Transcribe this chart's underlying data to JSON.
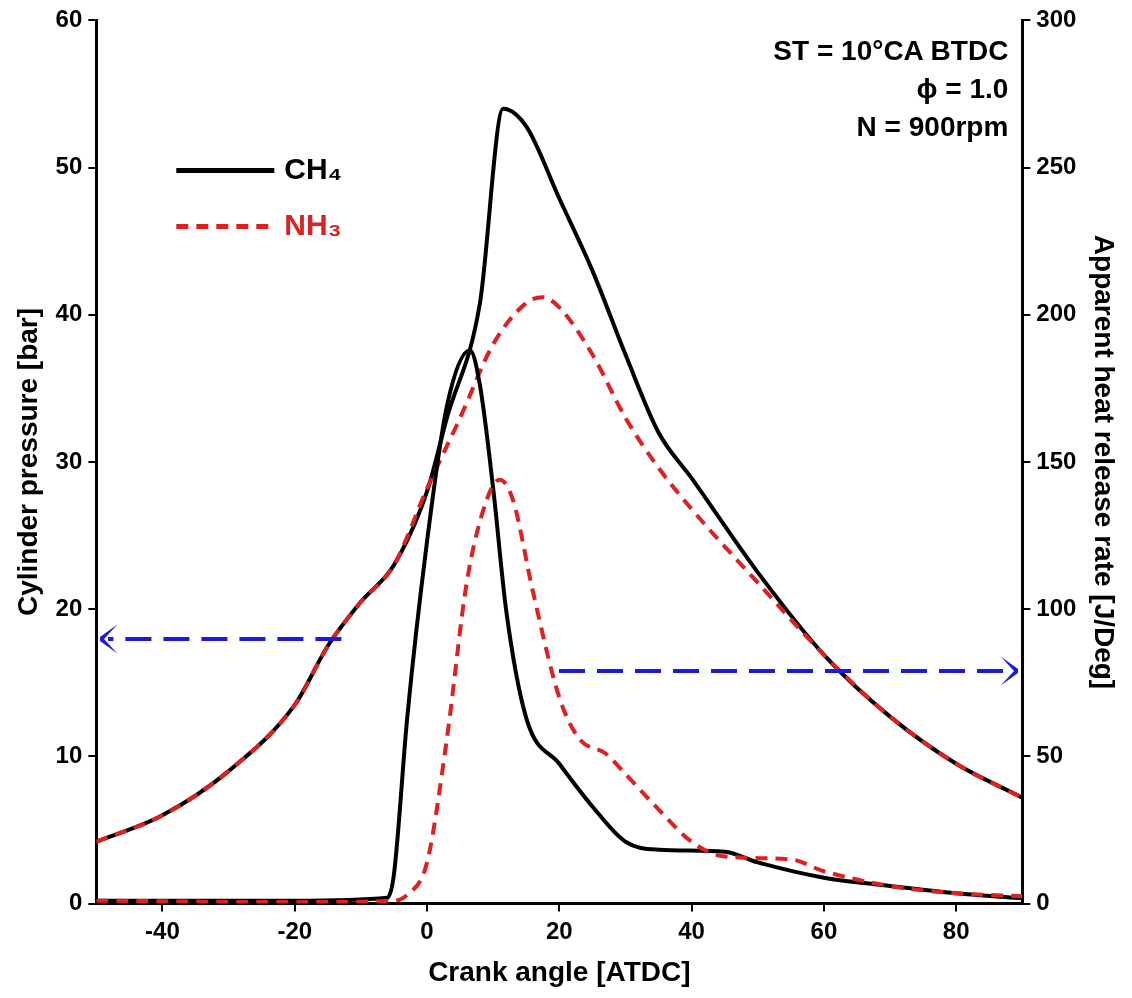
{
  "chart_data": {
    "type": "line",
    "xlabel": "Crank angle [ATDC]",
    "ylabel": "Cylinder pressure [bar]",
    "y2label": "Apparent heat release rate [J/Deg]",
    "xlim": [
      -50,
      90
    ],
    "xticks": [
      -40,
      -20,
      0,
      20,
      40,
      60,
      80
    ],
    "ylim": [
      0,
      60
    ],
    "yticks": [
      0,
      10,
      20,
      30,
      40,
      50,
      60
    ],
    "y2lim": [
      0,
      300
    ],
    "y2ticks": [
      0,
      50,
      100,
      150,
      200,
      250,
      300
    ],
    "grid": false,
    "legend": "top left",
    "marker": "none",
    "annotations": [
      "ST = 10°CA BTDC",
      "ϕ = 1.0",
      "N = 900rpm"
    ],
    "series": [
      {
        "name": "CH₄",
        "color": "#000000",
        "line_style": "solid",
        "x": [
          -50,
          -40,
          -30,
          -20,
          -15,
          -10,
          -5,
          0,
          3,
          8,
          11.5,
          15,
          20,
          25,
          30,
          35,
          40,
          50,
          60,
          70,
          80,
          90
        ],
        "values": [
          4.2,
          6,
          9,
          13.5,
          17.5,
          20.5,
          23,
          28,
          33,
          40.8,
          54,
          52.8,
          47.9,
          43,
          37.3,
          32,
          28.9,
          22.5,
          16.9,
          12.7,
          9.5,
          7.2
        ]
      },
      {
        "name": "NH₃",
        "color": "#e02020",
        "line_style": "dashed",
        "x": [
          -50,
          -40,
          -30,
          -20,
          -15,
          -10,
          -5,
          0,
          5,
          10,
          15,
          17.5,
          20,
          25,
          30,
          35,
          40,
          50,
          60,
          70,
          80,
          90
        ],
        "values": [
          4.2,
          6,
          9,
          13.5,
          17.5,
          20.5,
          23,
          28.2,
          33,
          38,
          40.8,
          41.2,
          40.5,
          37.3,
          33,
          29.6,
          26.8,
          21.8,
          16.9,
          12.7,
          9.5,
          7.2
        ]
      },
      {
        "color": "#000000",
        "line_style": "solid",
        "axis": "y2",
        "x": [
          -50,
          -20,
          -6,
          -5,
          -3,
          0,
          3,
          6.5,
          8,
          10,
          12,
          15,
          20,
          25,
          30,
          35,
          45,
          50,
          60,
          70,
          80,
          90
        ],
        "values": [
          1,
          1,
          2,
          10,
          63,
          123,
          169,
          188,
          176,
          141,
          99,
          63,
          47.5,
          33,
          21,
          18.3,
          17.6,
          14,
          8.8,
          6,
          3.5,
          1.8
        ]
      },
      {
        "color": "#e02020",
        "line_style": "dashed",
        "axis": "y2",
        "x": [
          -50,
          -20,
          -5,
          -3,
          0,
          3,
          6,
          9,
          11,
          13,
          16,
          20,
          23,
          27,
          30,
          35,
          40,
          45,
          55,
          60,
          70,
          80,
          90
        ],
        "values": [
          1,
          0.5,
          1,
          3,
          14,
          56,
          109,
          137,
          144,
          137,
          106,
          70,
          56,
          51,
          44,
          32,
          21,
          16,
          15,
          11,
          6,
          3.5,
          2.5
        ]
      }
    ]
  }
}
